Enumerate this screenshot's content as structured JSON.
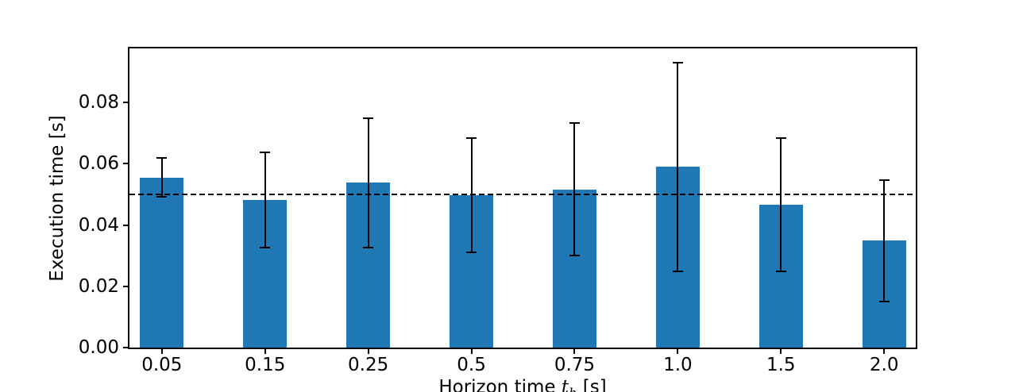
{
  "chart_data": {
    "type": "bar",
    "title": "",
    "xlabel": "Horizon time t_h [s]",
    "xlabel_parts": {
      "prefix": "Horizon time ",
      "var": "t",
      "sub": "h",
      "suffix": " [s]"
    },
    "ylabel": "Execution time [s]",
    "categories": [
      "0.05",
      "0.15",
      "0.25",
      "0.5",
      "0.75",
      "1.0",
      "1.5",
      "2.0"
    ],
    "series": [
      {
        "name": "Execution time",
        "values": [
          0.0555,
          0.0483,
          0.0538,
          0.0497,
          0.0517,
          0.0592,
          0.0466,
          0.0349
        ],
        "error_low": [
          0.0492,
          0.0326,
          0.0326,
          0.031,
          0.03,
          0.025,
          0.0249,
          0.015
        ],
        "error_high": [
          0.062,
          0.0638,
          0.0749,
          0.0685,
          0.0733,
          0.0931,
          0.0685,
          0.0546
        ]
      }
    ],
    "reference_line_y": 0.05,
    "reference_line_style": "dashed",
    "yticks": [
      "0.00",
      "0.02",
      "0.04",
      "0.06",
      "0.08"
    ],
    "ytick_values": [
      0.0,
      0.02,
      0.04,
      0.06,
      0.08
    ],
    "ylim": [
      0.0,
      0.0977
    ],
    "grid": false,
    "legend": "none",
    "colors": {
      "bar": "#1f77b4",
      "error_bar": "#000000",
      "reference_line": "#000000",
      "axis": "#000000",
      "background": "#ffffff"
    },
    "layout": {
      "first_center_frac": 0.04125,
      "center_step_frac": 0.13122,
      "bar_width_frac": 0.05533
    }
  }
}
